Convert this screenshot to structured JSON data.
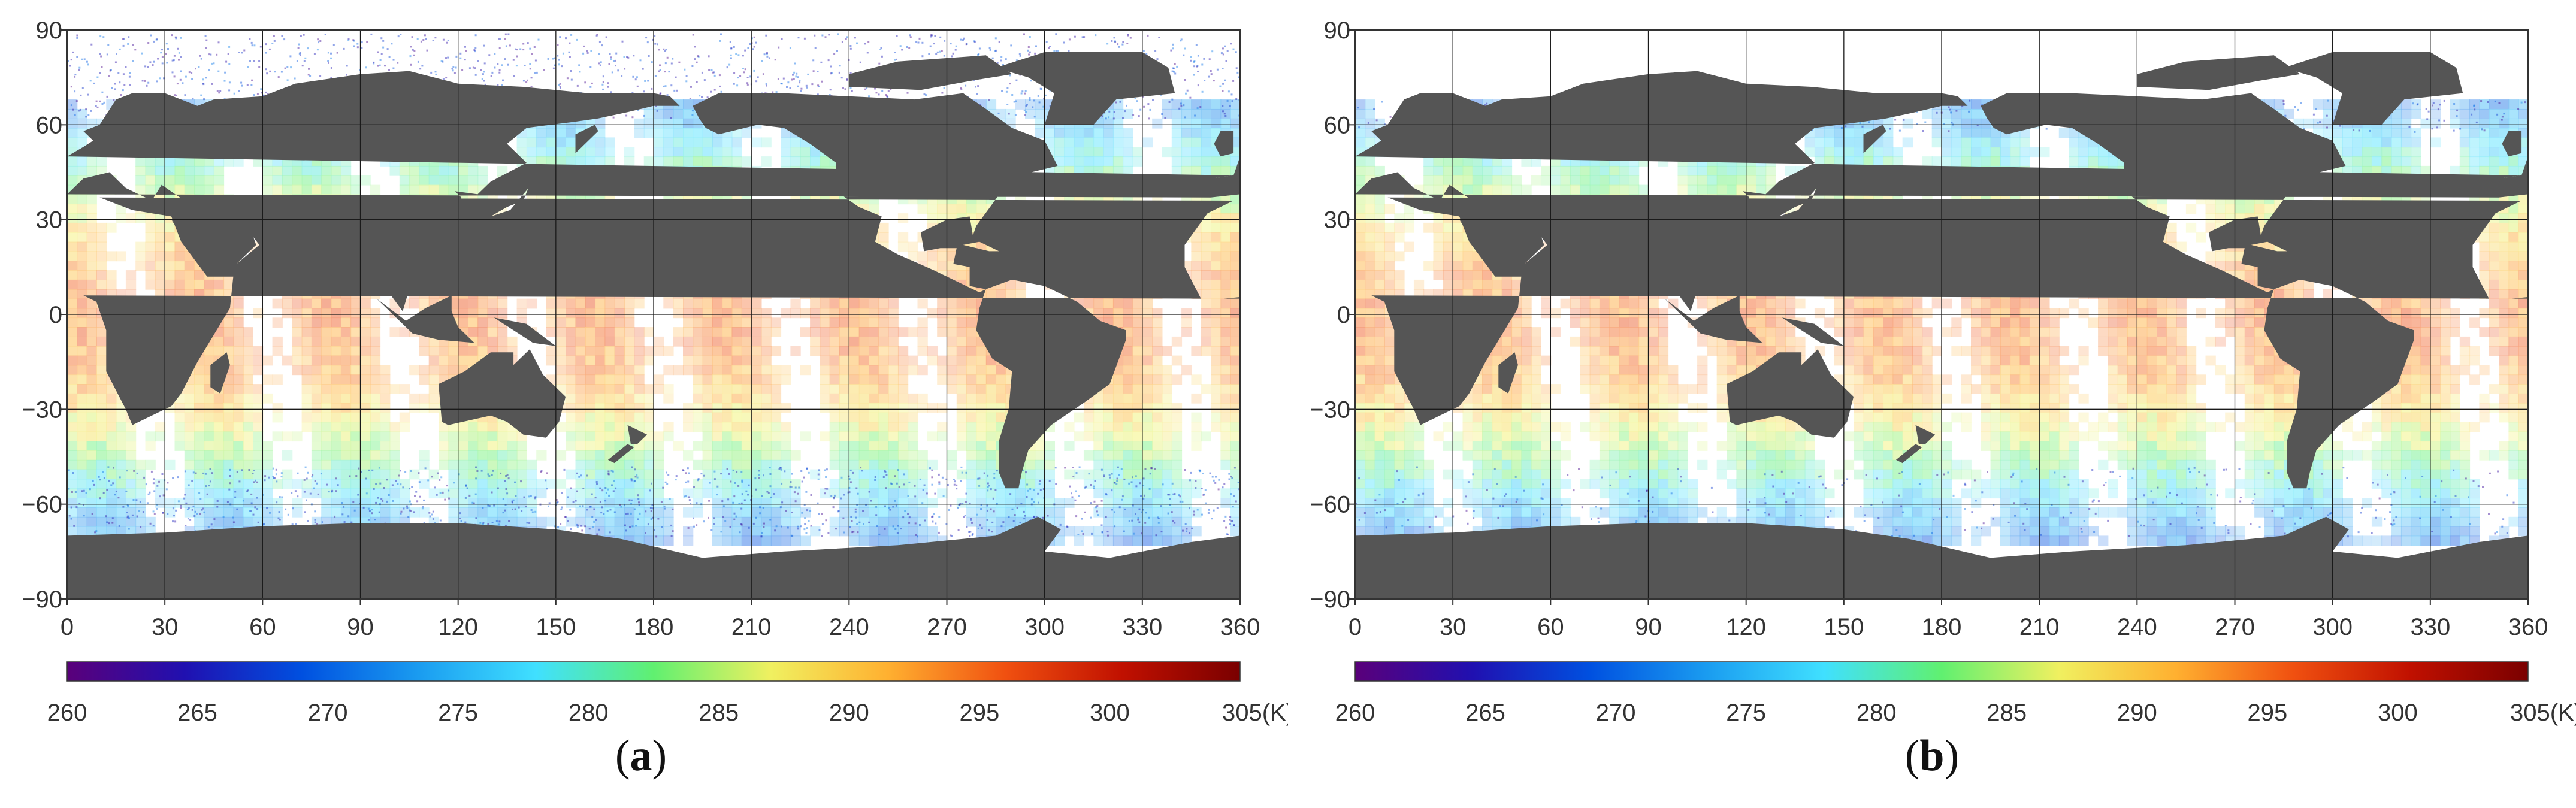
{
  "panels": [
    {
      "id": "a",
      "caption_open": "(",
      "caption_letter": "a",
      "caption_close": ")",
      "seed": 11,
      "polar_speckle": true
    },
    {
      "id": "b",
      "caption_open": "(",
      "caption_letter": "b",
      "caption_close": ")",
      "seed": 29,
      "polar_speckle": false
    }
  ],
  "lat_ticks": [
    "90",
    "60",
    "30",
    "0",
    "−30",
    "−60",
    "−90"
  ],
  "lon_ticks": [
    "0",
    "30",
    "60",
    "90",
    "120",
    "150",
    "180",
    "210",
    "240",
    "270",
    "300",
    "330",
    "360"
  ],
  "colorbar": {
    "ticks": [
      "260",
      "265",
      "270",
      "275",
      "280",
      "285",
      "290",
      "295",
      "300",
      "305(K)"
    ],
    "min": 260,
    "max": 305,
    "unit": "K",
    "colors": [
      "#5a007a",
      "#2010b0",
      "#0050e0",
      "#1a9cf0",
      "#40e0ff",
      "#60f070",
      "#f0f060",
      "#ffb030",
      "#f05010",
      "#c01000",
      "#7a0000"
    ]
  },
  "colors": {
    "land": "#555555",
    "ocean_background": "#ffffff",
    "grid": "#1a1a1a"
  }
}
